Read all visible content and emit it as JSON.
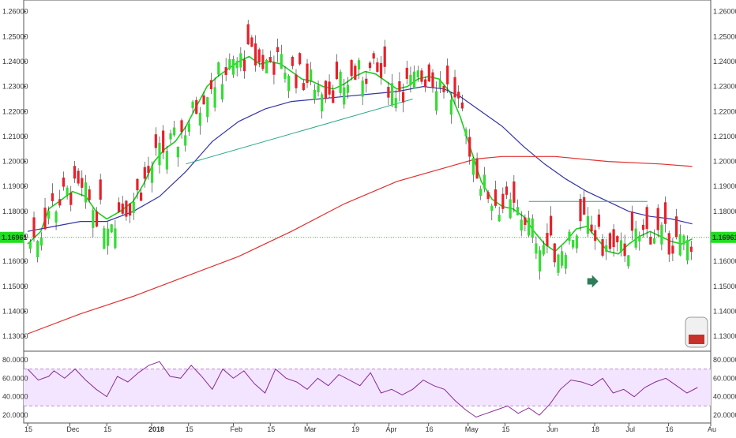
{
  "chart_data": [
    {
      "type": "candlestick",
      "title": "",
      "ylim": [
        1.125,
        1.264
      ],
      "y_ticks": [
        "1.13000",
        "1.14000",
        "1.15000",
        "1.16000",
        "1.17000",
        "1.18000",
        "1.19000",
        "1.20000",
        "1.21000",
        "1.22000",
        "1.23000",
        "1.24000",
        "1.25000",
        "1.26000"
      ],
      "x_ticks": [
        {
          "label": "15",
          "day": 0
        },
        {
          "label": "Dec",
          "day": 16
        },
        {
          "label": "15",
          "day": 30
        },
        {
          "label": "2018",
          "day": 47,
          "bold": true
        },
        {
          "label": "15",
          "day": 61
        },
        {
          "label": "Feb",
          "day": 78
        },
        {
          "label": "15",
          "day": 92
        },
        {
          "label": "Mar",
          "day": 106
        },
        {
          "label": "19",
          "day": 124
        },
        {
          "label": "Apr",
          "day": 137
        },
        {
          "label": "16",
          "day": 152
        },
        {
          "label": "May",
          "day": 167
        },
        {
          "label": "15",
          "day": 181
        },
        {
          "label": "Jun",
          "day": 198
        },
        {
          "label": "18",
          "day": 215
        },
        {
          "label": "Jul",
          "day": 228
        },
        {
          "label": "16",
          "day": 243
        },
        {
          "label": "Au",
          "day": 259
        }
      ],
      "price_label": "1.16961",
      "current_price": 1.16961,
      "colors": {
        "up": "#33dd33",
        "down": "#e8202a",
        "ema_fast": "#1ecc1e",
        "ma_mid": "#3333aa",
        "ma_slow": "#e03030",
        "price_line": "#22cc22",
        "trendline": "#2aa88a"
      },
      "overlays": [
        {
          "name": "green-ma",
          "color": "#1ecc1e",
          "points": [
            [
              0,
              1.167
            ],
            [
              5,
              1.172
            ],
            [
              8,
              1.181
            ],
            [
              12,
              1.184
            ],
            [
              17,
              1.188
            ],
            [
              22,
              1.186
            ],
            [
              26,
              1.18
            ],
            [
              30,
              1.177
            ],
            [
              35,
              1.18
            ],
            [
              40,
              1.184
            ],
            [
              44,
              1.191
            ],
            [
              48,
              1.2
            ],
            [
              52,
              1.205
            ],
            [
              56,
              1.208
            ],
            [
              60,
              1.214
            ],
            [
              64,
              1.222
            ],
            [
              68,
              1.23
            ],
            [
              72,
              1.234
            ],
            [
              76,
              1.237
            ],
            [
              80,
              1.24
            ],
            [
              84,
              1.242
            ],
            [
              88,
              1.239
            ],
            [
              92,
              1.24
            ],
            [
              96,
              1.239
            ],
            [
              100,
              1.236
            ],
            [
              104,
              1.233
            ],
            [
              108,
              1.232
            ],
            [
              112,
              1.23
            ],
            [
              116,
              1.229
            ],
            [
              120,
              1.231
            ],
            [
              124,
              1.234
            ],
            [
              128,
              1.236
            ],
            [
              132,
              1.235
            ],
            [
              136,
              1.232
            ],
            [
              140,
              1.229
            ],
            [
              144,
              1.23
            ],
            [
              148,
              1.233
            ],
            [
              152,
              1.234
            ],
            [
              156,
              1.233
            ],
            [
              160,
              1.228
            ],
            [
              164,
              1.218
            ],
            [
              168,
              1.205
            ],
            [
              172,
              1.192
            ],
            [
              176,
              1.185
            ],
            [
              180,
              1.182
            ],
            [
              184,
              1.181
            ],
            [
              188,
              1.178
            ],
            [
              192,
              1.172
            ],
            [
              196,
              1.167
            ],
            [
              200,
              1.164
            ],
            [
              204,
              1.168
            ],
            [
              208,
              1.173
            ],
            [
              212,
              1.174
            ],
            [
              216,
              1.169
            ],
            [
              220,
              1.164
            ],
            [
              224,
              1.163
            ],
            [
              228,
              1.167
            ],
            [
              232,
              1.17
            ],
            [
              236,
              1.172
            ],
            [
              240,
              1.17
            ],
            [
              244,
              1.168
            ],
            [
              248,
              1.167
            ],
            [
              252,
              1.169
            ]
          ]
        },
        {
          "name": "blue-ma",
          "color": "#3333aa",
          "points": [
            [
              0,
              1.172
            ],
            [
              10,
              1.174
            ],
            [
              20,
              1.176
            ],
            [
              30,
              1.176
            ],
            [
              40,
              1.18
            ],
            [
              50,
              1.186
            ],
            [
              60,
              1.196
            ],
            [
              70,
              1.208
            ],
            [
              80,
              1.216
            ],
            [
              90,
              1.221
            ],
            [
              100,
              1.224
            ],
            [
              110,
              1.225
            ],
            [
              120,
              1.226
            ],
            [
              130,
              1.227
            ],
            [
              140,
              1.228
            ],
            [
              150,
              1.23
            ],
            [
              158,
              1.229
            ],
            [
              164,
              1.226
            ],
            [
              172,
              1.22
            ],
            [
              180,
              1.214
            ],
            [
              188,
              1.206
            ],
            [
              196,
              1.199
            ],
            [
              204,
              1.193
            ],
            [
              212,
              1.188
            ],
            [
              220,
              1.184
            ],
            [
              228,
              1.18
            ],
            [
              236,
              1.178
            ],
            [
              244,
              1.177
            ],
            [
              252,
              1.175
            ]
          ]
        },
        {
          "name": "red-ma",
          "color": "#e03030",
          "points": [
            [
              0,
              1.131
            ],
            [
              20,
              1.139
            ],
            [
              40,
              1.146
            ],
            [
              60,
              1.154
            ],
            [
              80,
              1.162
            ],
            [
              100,
              1.172
            ],
            [
              120,
              1.183
            ],
            [
              140,
              1.192
            ],
            [
              160,
              1.198
            ],
            [
              170,
              1.201
            ],
            [
              180,
              1.202
            ],
            [
              200,
              1.202
            ],
            [
              220,
              1.2
            ],
            [
              240,
              1.199
            ],
            [
              252,
              1.198
            ]
          ]
        },
        {
          "name": "trendline",
          "color": "#2aa88a",
          "points": [
            [
              60,
              1.199
            ],
            [
              146,
              1.225
            ]
          ]
        },
        {
          "name": "resistance-line",
          "color": "#2aa88a",
          "points": [
            [
              190,
              1.184
            ],
            [
              235,
              1.184
            ]
          ]
        }
      ],
      "rsi": {
        "type": "line",
        "ylim": [
          15,
          85
        ],
        "y_ticks": [
          "20.0000",
          "40.0000",
          "60.0000",
          "80.0000"
        ],
        "band": [
          30,
          70
        ],
        "color": "#8a2a9a",
        "points": [
          [
            0,
            70
          ],
          [
            4,
            58
          ],
          [
            8,
            62
          ],
          [
            10,
            68
          ],
          [
            14,
            60
          ],
          [
            18,
            70
          ],
          [
            22,
            58
          ],
          [
            26,
            48
          ],
          [
            30,
            40
          ],
          [
            34,
            62
          ],
          [
            38,
            56
          ],
          [
            42,
            66
          ],
          [
            46,
            74
          ],
          [
            50,
            78
          ],
          [
            54,
            62
          ],
          [
            58,
            60
          ],
          [
            62,
            74
          ],
          [
            66,
            62
          ],
          [
            70,
            48
          ],
          [
            74,
            70
          ],
          [
            78,
            60
          ],
          [
            82,
            68
          ],
          [
            86,
            54
          ],
          [
            90,
            44
          ],
          [
            94,
            70
          ],
          [
            98,
            60
          ],
          [
            102,
            56
          ],
          [
            106,
            48
          ],
          [
            110,
            60
          ],
          [
            114,
            52
          ],
          [
            118,
            64
          ],
          [
            122,
            58
          ],
          [
            126,
            52
          ],
          [
            130,
            66
          ],
          [
            134,
            44
          ],
          [
            138,
            48
          ],
          [
            142,
            42
          ],
          [
            146,
            48
          ],
          [
            150,
            58
          ],
          [
            154,
            52
          ],
          [
            158,
            48
          ],
          [
            162,
            36
          ],
          [
            166,
            26
          ],
          [
            170,
            18
          ],
          [
            174,
            22
          ],
          [
            178,
            26
          ],
          [
            182,
            30
          ],
          [
            186,
            22
          ],
          [
            190,
            28
          ],
          [
            194,
            20
          ],
          [
            198,
            32
          ],
          [
            202,
            48
          ],
          [
            206,
            58
          ],
          [
            210,
            56
          ],
          [
            214,
            52
          ],
          [
            218,
            60
          ],
          [
            222,
            44
          ],
          [
            226,
            48
          ],
          [
            230,
            40
          ],
          [
            234,
            50
          ],
          [
            238,
            56
          ],
          [
            242,
            60
          ],
          [
            246,
            52
          ],
          [
            250,
            44
          ],
          [
            254,
            50
          ]
        ]
      }
    }
  ]
}
